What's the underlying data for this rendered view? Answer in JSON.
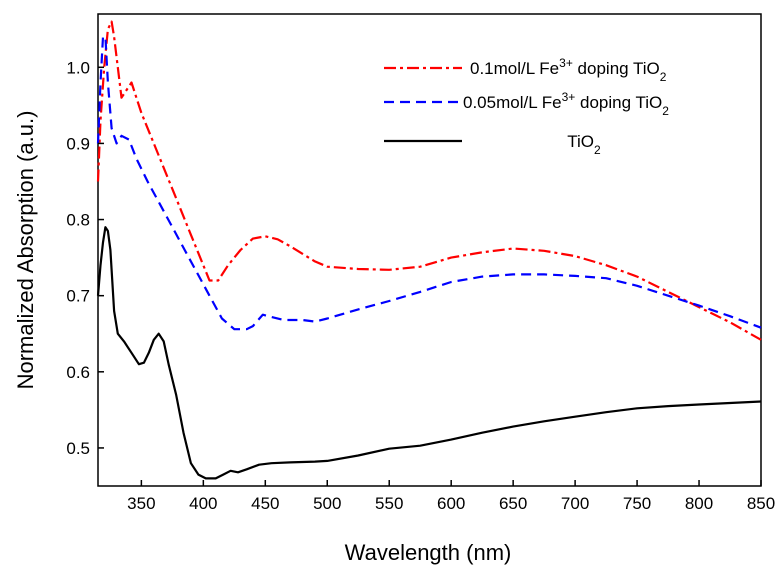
{
  "chart_data": {
    "type": "line",
    "title": "",
    "xlabel": "Wavelength (nm)",
    "ylabel": "Normalized Absorption (a.u.)",
    "xlim": [
      315,
      850
    ],
    "ylim": [
      0.45,
      1.07
    ],
    "x_ticks": [
      350,
      400,
      450,
      500,
      550,
      600,
      650,
      700,
      750,
      800,
      850
    ],
    "x_tick_labels": [
      "350",
      "400",
      "450",
      "500",
      "550",
      "600",
      "650",
      "700",
      "750",
      "800",
      "850"
    ],
    "y_ticks": [
      0.5,
      0.6,
      0.7,
      0.8,
      0.9,
      1.0
    ],
    "y_tick_labels": [
      "0.5",
      "0.6",
      "0.7",
      "0.8",
      "0.9",
      "1.0"
    ],
    "grid": false,
    "legend_position": "top-right",
    "series": [
      {
        "name": "0.1mol/L Fe3+ doping TiO2",
        "legend": {
          "prefix": "0.1mol/L Fe",
          "sup": "3+",
          "mid": " doping TiO",
          "sub": "2"
        },
        "color": "#ff0000",
        "dash": "12,4,3,4",
        "points": [
          [
            315,
            0.85
          ],
          [
            317,
            0.93
          ],
          [
            320,
            1.0
          ],
          [
            323,
            1.05
          ],
          [
            326,
            1.06
          ],
          [
            328,
            1.04
          ],
          [
            331,
            1.0
          ],
          [
            334,
            0.96
          ],
          [
            338,
            0.97
          ],
          [
            342,
            0.98
          ],
          [
            346,
            0.96
          ],
          [
            350,
            0.94
          ],
          [
            360,
            0.9
          ],
          [
            370,
            0.86
          ],
          [
            380,
            0.82
          ],
          [
            390,
            0.78
          ],
          [
            400,
            0.74
          ],
          [
            405,
            0.72
          ],
          [
            412,
            0.72
          ],
          [
            420,
            0.74
          ],
          [
            430,
            0.76
          ],
          [
            440,
            0.775
          ],
          [
            450,
            0.778
          ],
          [
            460,
            0.774
          ],
          [
            470,
            0.765
          ],
          [
            480,
            0.755
          ],
          [
            490,
            0.745
          ],
          [
            500,
            0.738
          ],
          [
            525,
            0.735
          ],
          [
            550,
            0.734
          ],
          [
            575,
            0.738
          ],
          [
            600,
            0.75
          ],
          [
            625,
            0.757
          ],
          [
            650,
            0.762
          ],
          [
            675,
            0.759
          ],
          [
            700,
            0.752
          ],
          [
            725,
            0.74
          ],
          [
            750,
            0.725
          ],
          [
            775,
            0.705
          ],
          [
            800,
            0.685
          ],
          [
            825,
            0.665
          ],
          [
            850,
            0.642
          ]
        ]
      },
      {
        "name": "0.05mol/L Fe3+ doping TiO2",
        "legend": {
          "prefix": "0.05mol/L Fe",
          "sup": "3+",
          "mid": " doping TiO",
          "sub": "2"
        },
        "color": "#0000ff",
        "dash": "10,6",
        "points": [
          [
            315,
            0.9
          ],
          [
            317,
            0.98
          ],
          [
            319,
            1.04
          ],
          [
            321,
            1.04
          ],
          [
            323,
            0.98
          ],
          [
            326,
            0.92
          ],
          [
            330,
            0.9
          ],
          [
            334,
            0.91
          ],
          [
            340,
            0.905
          ],
          [
            346,
            0.88
          ],
          [
            355,
            0.85
          ],
          [
            365,
            0.82
          ],
          [
            375,
            0.79
          ],
          [
            385,
            0.76
          ],
          [
            395,
            0.73
          ],
          [
            405,
            0.7
          ],
          [
            415,
            0.67
          ],
          [
            425,
            0.656
          ],
          [
            435,
            0.656
          ],
          [
            440,
            0.66
          ],
          [
            448,
            0.675
          ],
          [
            455,
            0.672
          ],
          [
            465,
            0.668
          ],
          [
            480,
            0.668
          ],
          [
            490,
            0.666
          ],
          [
            500,
            0.67
          ],
          [
            525,
            0.682
          ],
          [
            550,
            0.693
          ],
          [
            575,
            0.705
          ],
          [
            600,
            0.718
          ],
          [
            625,
            0.725
          ],
          [
            650,
            0.728
          ],
          [
            675,
            0.728
          ],
          [
            700,
            0.726
          ],
          [
            725,
            0.723
          ],
          [
            750,
            0.713
          ],
          [
            775,
            0.7
          ],
          [
            800,
            0.687
          ],
          [
            825,
            0.673
          ],
          [
            850,
            0.658
          ]
        ]
      },
      {
        "name": "TiO2",
        "legend": {
          "prefix": "",
          "sup": "",
          "mid": "TiO",
          "sub": "2"
        },
        "color": "#000000",
        "dash": "",
        "points": [
          [
            315,
            0.7
          ],
          [
            317,
            0.74
          ],
          [
            319,
            0.77
          ],
          [
            321,
            0.79
          ],
          [
            323,
            0.785
          ],
          [
            325,
            0.76
          ],
          [
            328,
            0.68
          ],
          [
            331,
            0.65
          ],
          [
            336,
            0.64
          ],
          [
            342,
            0.625
          ],
          [
            348,
            0.61
          ],
          [
            352,
            0.612
          ],
          [
            356,
            0.625
          ],
          [
            360,
            0.642
          ],
          [
            364,
            0.65
          ],
          [
            368,
            0.64
          ],
          [
            372,
            0.61
          ],
          [
            378,
            0.57
          ],
          [
            384,
            0.52
          ],
          [
            390,
            0.48
          ],
          [
            396,
            0.465
          ],
          [
            402,
            0.46
          ],
          [
            410,
            0.46
          ],
          [
            416,
            0.465
          ],
          [
            422,
            0.47
          ],
          [
            428,
            0.468
          ],
          [
            435,
            0.472
          ],
          [
            445,
            0.478
          ],
          [
            455,
            0.48
          ],
          [
            470,
            0.481
          ],
          [
            490,
            0.482
          ],
          [
            500,
            0.483
          ],
          [
            525,
            0.49
          ],
          [
            550,
            0.499
          ],
          [
            575,
            0.503
          ],
          [
            600,
            0.511
          ],
          [
            625,
            0.52
          ],
          [
            650,
            0.528
          ],
          [
            675,
            0.535
          ],
          [
            700,
            0.541
          ],
          [
            725,
            0.547
          ],
          [
            750,
            0.552
          ],
          [
            775,
            0.555
          ],
          [
            800,
            0.557
          ],
          [
            825,
            0.559
          ],
          [
            850,
            0.561
          ]
        ]
      }
    ]
  }
}
